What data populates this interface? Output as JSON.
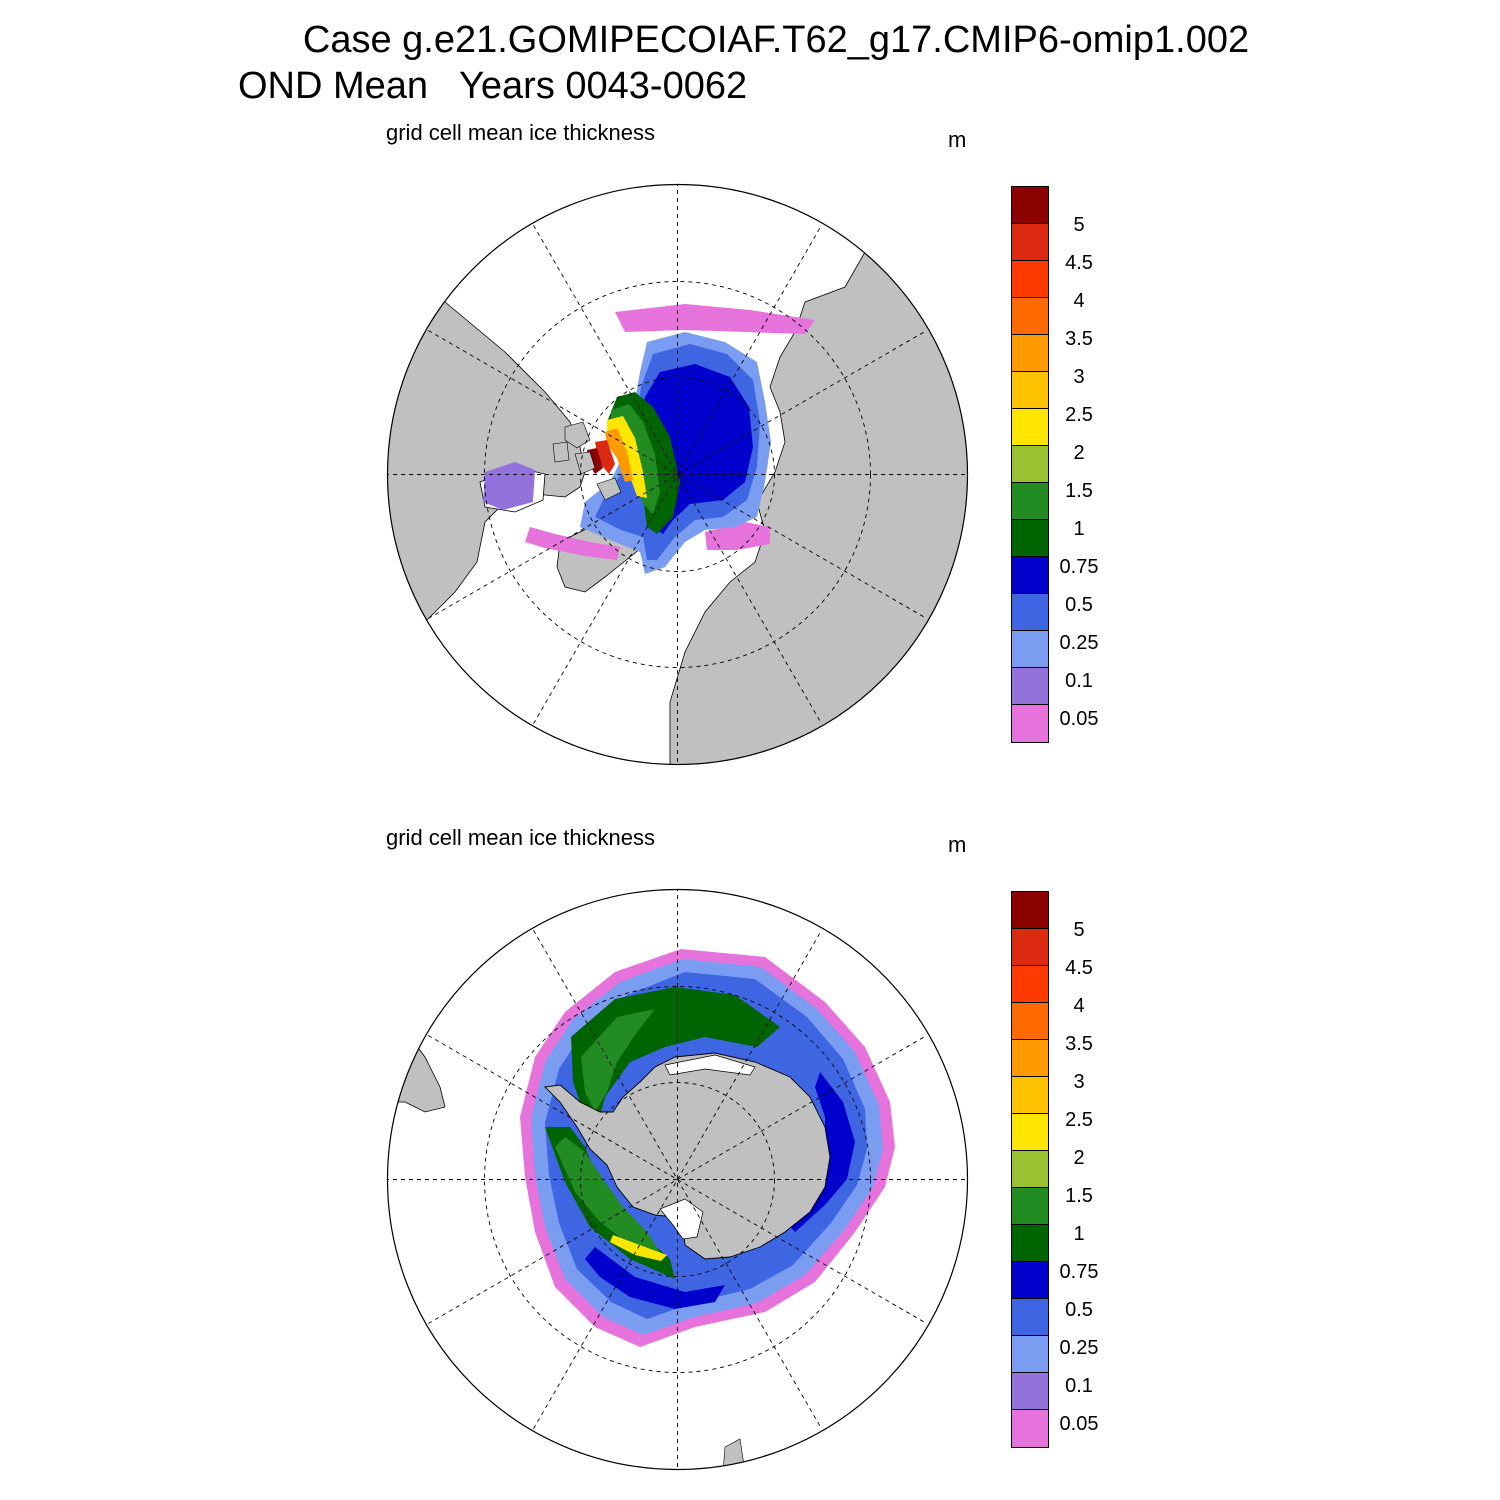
{
  "header": {
    "line1": "Case g.e21.GOMIPECOIAF.T62_g17.CMIP6-omip1.002",
    "line2": "OND Mean   Years 0043-0062"
  },
  "panels": [
    {
      "id": "north",
      "title": "grid cell mean ice thickness",
      "units": "m",
      "hemisphere": "Northern (Arctic)"
    },
    {
      "id": "south",
      "title": "grid cell mean ice thickness",
      "units": "m",
      "hemisphere": "Southern (Antarctic)"
    }
  ],
  "colorbar": {
    "labels": [
      "5",
      "4.5",
      "4",
      "3.5",
      "3",
      "2.5",
      "2",
      "1.5",
      "1",
      "0.75",
      "0.5",
      "0.25",
      "0.1",
      "0.05"
    ],
    "colors": [
      "#8b0000",
      "#dc2a12",
      "#ff3a00",
      "#ff6a00",
      "#ff9a00",
      "#ffc200",
      "#ffe600",
      "#9ac132",
      "#228b22",
      "#006400",
      "#0000cd",
      "#3e66e3",
      "#7a9df2",
      "#9372dc",
      "#e672dc"
    ]
  },
  "style": {
    "land": "#c0c0c0",
    "ocean": "#ffffff"
  }
}
